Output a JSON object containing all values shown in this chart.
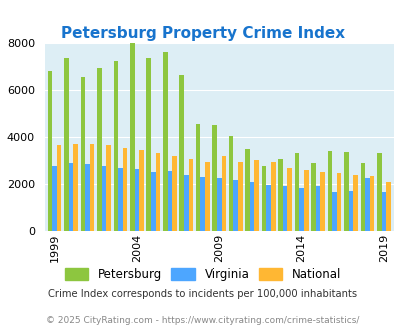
{
  "title": "Petersburg Property Crime Index",
  "title_color": "#1874CD",
  "years": [
    1999,
    2000,
    2001,
    2002,
    2003,
    2004,
    2005,
    2006,
    2007,
    2008,
    2009,
    2010,
    2011,
    2012,
    2013,
    2014,
    2015,
    2016,
    2017,
    2018,
    2019
  ],
  "petersburg": [
    6800,
    7350,
    6550,
    6950,
    7250,
    8000,
    7350,
    7600,
    6650,
    4550,
    4500,
    4050,
    3500,
    2750,
    3050,
    3300,
    2900,
    3400,
    3350,
    2900,
    3300
  ],
  "virginia": [
    2750,
    2900,
    2850,
    2750,
    2700,
    2650,
    2500,
    2550,
    2400,
    2300,
    2250,
    2150,
    2100,
    1950,
    1900,
    1850,
    1900,
    1650,
    1700,
    2250,
    1650
  ],
  "national": [
    3650,
    3700,
    3700,
    3650,
    3550,
    3450,
    3300,
    3200,
    3050,
    2950,
    3200,
    2950,
    3000,
    2950,
    2700,
    2600,
    2500,
    2450,
    2400,
    2350,
    2100
  ],
  "colors": {
    "petersburg": "#8dc63f",
    "virginia": "#4da6ff",
    "national": "#ffb733"
  },
  "ylim": [
    0,
    8000
  ],
  "yticks": [
    0,
    2000,
    4000,
    6000,
    8000
  ],
  "bg_color": "#ddeef5",
  "legend_labels": [
    "Petersburg",
    "Virginia",
    "National"
  ],
  "footnote1": "Crime Index corresponds to incidents per 100,000 inhabitants",
  "footnote2": "© 2025 CityRating.com - https://www.cityrating.com/crime-statistics/",
  "footnote_color": "#888888",
  "xtick_years": [
    1999,
    2004,
    2009,
    2014,
    2019
  ]
}
